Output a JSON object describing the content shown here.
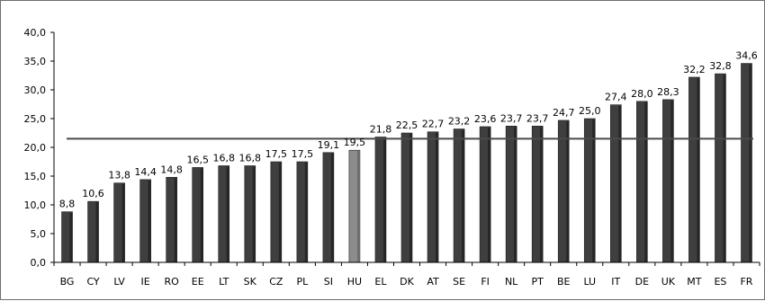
{
  "chart_data": {
    "type": "bar",
    "title": "",
    "xlabel": "",
    "ylabel": "",
    "ylim": [
      0,
      40
    ],
    "yticks": [
      "0,0",
      "5,0",
      "10,0",
      "15,0",
      "20,0",
      "25,0",
      "30,0",
      "35,0",
      "40,0"
    ],
    "categories": [
      "BG",
      "CY",
      "LV",
      "IE",
      "RO",
      "EE",
      "LT",
      "SK",
      "CZ",
      "PL",
      "SI",
      "HU",
      "EL",
      "DK",
      "AT",
      "SE",
      "FI",
      "NL",
      "PT",
      "BE",
      "LU",
      "IT",
      "DE",
      "UK",
      "MT",
      "ES",
      "FR"
    ],
    "values": [
      8.8,
      10.6,
      13.8,
      14.4,
      14.8,
      16.5,
      16.8,
      16.8,
      17.5,
      17.5,
      19.1,
      19.5,
      21.8,
      22.5,
      22.7,
      23.2,
      23.6,
      23.7,
      23.7,
      24.7,
      25.0,
      27.4,
      28.0,
      28.3,
      32.2,
      32.8,
      34.6
    ],
    "data_labels": [
      "8,8",
      "10,6",
      "13,8",
      "14,4",
      "14,8",
      "16,5",
      "16,8",
      "16,8",
      "17,5",
      "17,5",
      "19,1",
      "19,5",
      "21,8",
      "22,5",
      "22,7",
      "23,2",
      "23,6",
      "23,7",
      "23,7",
      "24,7",
      "25,0",
      "27,4",
      "28,0",
      "28,3",
      "32,2",
      "32,8",
      "34,6"
    ],
    "highlight_category": "HU",
    "reference_line": 21.5,
    "grid": false,
    "colors": {
      "bar": "#3f3f3f",
      "bar_highlight": "#8c8c8c",
      "reference_line": "#4a4a4a",
      "axis": "#000000"
    }
  }
}
